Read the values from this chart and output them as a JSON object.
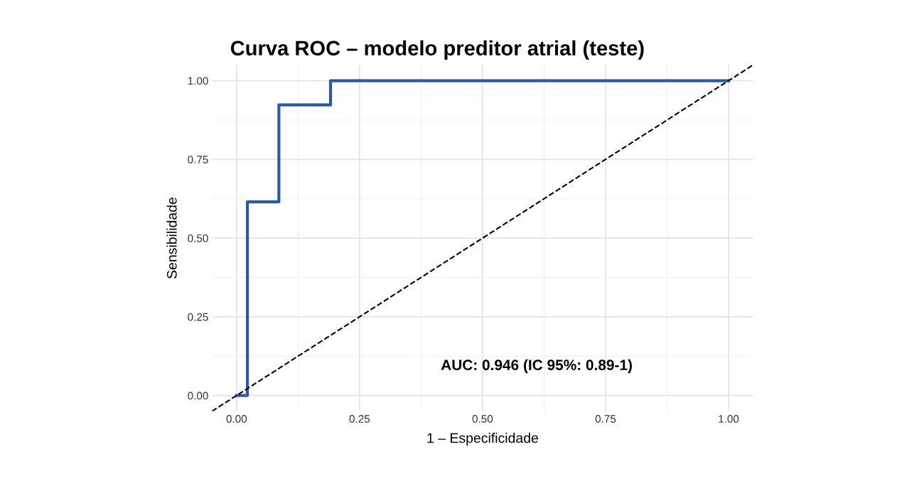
{
  "chart_data": {
    "type": "step",
    "title": "Curva ROC – modelo preditor atrial (teste)",
    "xlabel": "1 – Especificidade",
    "ylabel": "Sensibilidade",
    "series": [
      {
        "color": "#2b58a8",
        "x": [
          0,
          0.022,
          0.086,
          0.191,
          1.0
        ],
        "values": [
          0,
          0.615,
          0.923,
          1.0,
          1.0
        ],
        "line_style": "solid"
      },
      {
        "type": "line",
        "color": "#000000",
        "x": [
          -0.05,
          1.05
        ],
        "values": [
          -0.05,
          1.05
        ],
        "line_style": "dashed"
      }
    ],
    "xlim": [
      -0.05,
      1.05
    ],
    "ylim": [
      -0.05,
      1.05
    ],
    "xticks": [
      {
        "value": 0,
        "label": "0.00"
      },
      {
        "value": 0.25,
        "label": "0.25"
      },
      {
        "value": 0.5,
        "label": "0.50"
      },
      {
        "value": 0.75,
        "label": "0.75"
      },
      {
        "value": 1,
        "label": "1.00"
      }
    ],
    "yticks": [
      {
        "value": 0,
        "label": "0.00"
      },
      {
        "value": 0.25,
        "label": "0.25"
      },
      {
        "value": 0.5,
        "label": "0.50"
      },
      {
        "value": 0.75,
        "label": "0.75"
      },
      {
        "value": 1,
        "label": "1.00"
      }
    ],
    "grid": true,
    "legend": false,
    "annotations": [
      "AUC: 0.946 (IC 95%: 0.89-1)"
    ]
  }
}
